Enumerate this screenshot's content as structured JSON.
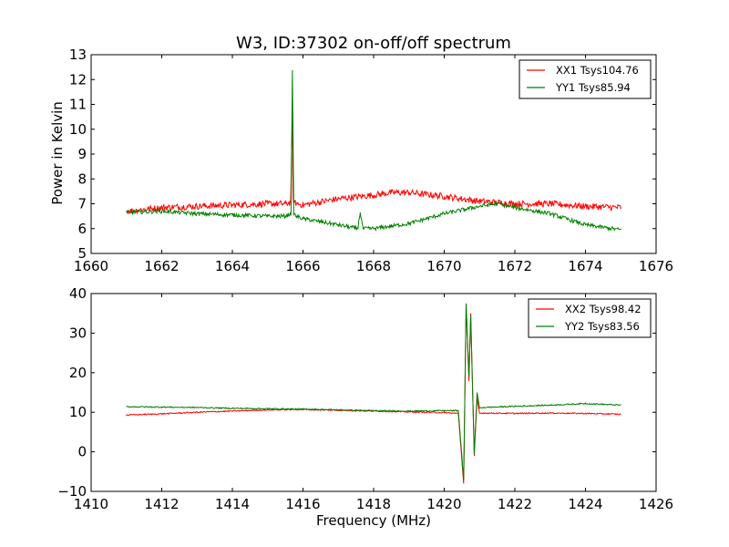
{
  "figure": {
    "title": "W3, ID:37302 on-off/off spectrum",
    "ylabel": "Power in Kelvin",
    "xlabel": "Frequency (MHz)"
  },
  "colors": {
    "xx": "#ff0000",
    "yy": "#007f00"
  },
  "chart_data": [
    {
      "type": "line",
      "title": "W3, ID:37302 on-off/off spectrum",
      "ylabel": "Power in Kelvin",
      "xlim": [
        1660,
        1676
      ],
      "ylim": [
        5,
        13
      ],
      "xticks": [
        "1660",
        "1662",
        "1664",
        "1666",
        "1668",
        "1670",
        "1672",
        "1674",
        "1676"
      ],
      "yticks": [
        "5",
        "6",
        "7",
        "8",
        "9",
        "10",
        "11",
        "12",
        "13"
      ],
      "legend_position": "top-right",
      "series": [
        {
          "name": "XX1 Tsys104.76",
          "color": "#ff0000",
          "x": [
            1661.0,
            1662.0,
            1663.0,
            1664.0,
            1665.0,
            1665.5,
            1665.65,
            1665.7,
            1665.72,
            1665.76,
            1665.85,
            1666.0,
            1667.0,
            1668.0,
            1668.5,
            1669.0,
            1670.0,
            1671.0,
            1672.0,
            1673.0,
            1674.0,
            1675.0
          ],
          "y": [
            6.7,
            6.85,
            6.9,
            6.95,
            7.0,
            7.0,
            7.05,
            10.7,
            7.2,
            7.05,
            7.0,
            6.95,
            7.2,
            7.35,
            7.45,
            7.45,
            7.3,
            7.1,
            7.0,
            7.0,
            6.9,
            6.85
          ],
          "noise": 0.13
        },
        {
          "name": "YY1 Tsys85.94",
          "color": "#007f00",
          "x": [
            1661.0,
            1662.0,
            1663.0,
            1664.0,
            1665.0,
            1665.5,
            1665.66,
            1665.7,
            1665.74,
            1665.8,
            1666.0,
            1667.0,
            1667.55,
            1667.62,
            1667.7,
            1668.0,
            1669.0,
            1670.0,
            1671.0,
            1671.5,
            1672.0,
            1673.0,
            1674.0,
            1675.0
          ],
          "y": [
            6.65,
            6.7,
            6.6,
            6.55,
            6.5,
            6.5,
            6.6,
            12.3,
            6.6,
            6.5,
            6.4,
            6.15,
            6.0,
            6.65,
            6.0,
            6.0,
            6.2,
            6.6,
            6.9,
            7.0,
            6.85,
            6.6,
            6.15,
            5.95
          ],
          "noise": 0.08
        }
      ]
    },
    {
      "type": "line",
      "xlabel": "Frequency (MHz)",
      "xlim": [
        1410,
        1426
      ],
      "ylim": [
        -10,
        40
      ],
      "xticks": [
        "1410",
        "1412",
        "1414",
        "1416",
        "1418",
        "1420",
        "1422",
        "1424",
        "1426"
      ],
      "yticks": [
        "−10",
        "0",
        "10",
        "20",
        "30",
        "40"
      ],
      "legend_position": "top-right",
      "series": [
        {
          "name": "XX2 Tsys98.42",
          "color": "#ff0000",
          "x": [
            1411.0,
            1412.0,
            1413.0,
            1414.0,
            1415.0,
            1416.0,
            1417.0,
            1418.0,
            1419.0,
            1420.0,
            1420.4,
            1420.55,
            1420.62,
            1420.7,
            1420.75,
            1420.85,
            1420.93,
            1421.0,
            1421.1,
            1422.0,
            1423.0,
            1424.0,
            1425.0
          ],
          "y": [
            9.3,
            9.6,
            10.0,
            10.3,
            10.6,
            10.7,
            10.5,
            10.3,
            10.1,
            9.9,
            9.7,
            -8.0,
            37.0,
            18.0,
            35.0,
            -1.0,
            13.5,
            9.7,
            9.8,
            9.7,
            9.8,
            9.7,
            9.5
          ],
          "noise": 0.15
        },
        {
          "name": "YY2 Tsys83.56",
          "color": "#007f00",
          "x": [
            1411.0,
            1412.0,
            1413.0,
            1414.0,
            1415.0,
            1416.0,
            1417.0,
            1418.0,
            1419.0,
            1420.0,
            1420.4,
            1420.55,
            1420.62,
            1420.7,
            1420.75,
            1420.85,
            1420.93,
            1421.0,
            1421.1,
            1422.0,
            1423.0,
            1424.0,
            1425.0
          ],
          "y": [
            11.4,
            11.3,
            11.2,
            11.0,
            10.9,
            10.8,
            10.6,
            10.4,
            10.3,
            10.4,
            10.4,
            -7.0,
            37.5,
            19.0,
            34.5,
            -0.5,
            15.0,
            11.0,
            11.2,
            11.5,
            11.8,
            12.2,
            11.8
          ],
          "noise": 0.15
        }
      ]
    }
  ]
}
